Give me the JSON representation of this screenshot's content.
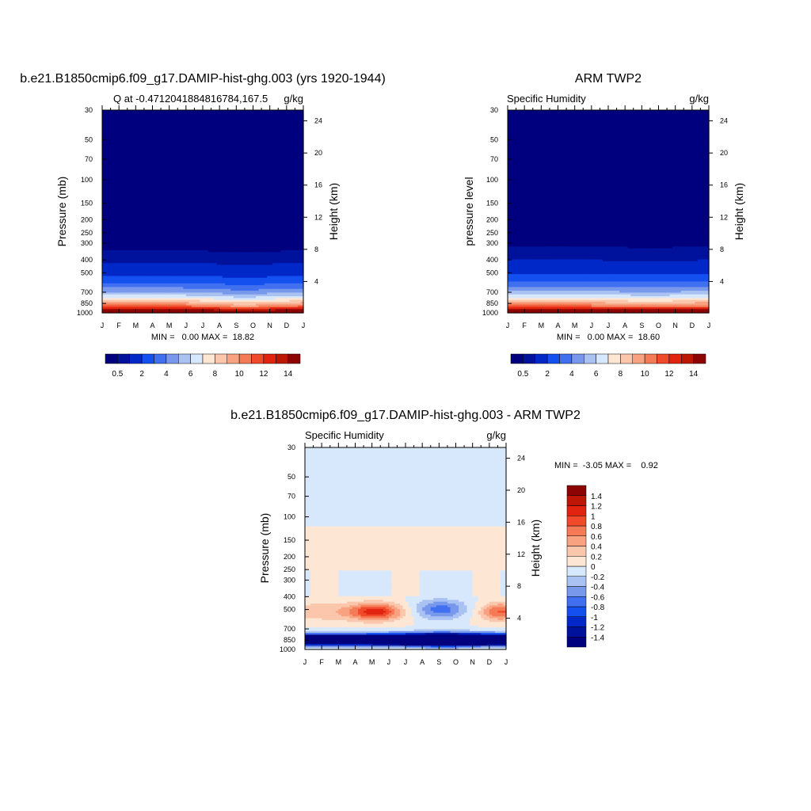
{
  "colorbar": {
    "sequential_colors": [
      "#00007f",
      "#00129b",
      "#0028c8",
      "#1450f0",
      "#4070f0",
      "#7898ec",
      "#aac2f2",
      "#d8e8fc",
      "#fee6d4",
      "#fbc7ac",
      "#f8a282",
      "#f57a56",
      "#f04a2a",
      "#e02410",
      "#bc1604",
      "#8c0404"
    ],
    "sequential_labels": [
      "0.5",
      "2",
      "4",
      "6",
      "8",
      "10",
      "12",
      "14"
    ],
    "diff_colors": [
      "#00007f",
      "#00129b",
      "#0028c8",
      "#1450f0",
      "#4070f0",
      "#7898ec",
      "#aac2f2",
      "#d8e8fc",
      "#fee6d4",
      "#fbc7ac",
      "#f8a282",
      "#f57a56",
      "#f04a2a",
      "#e02410",
      "#bc1604",
      "#8c0404"
    ],
    "diff_labels": [
      "-1.4",
      "-1.2",
      "-1",
      "-0.8",
      "-0.6",
      "-0.4",
      "-0.2",
      "0",
      "0.2",
      "0.4",
      "0.6",
      "0.8",
      "1",
      "1.2",
      "1.4"
    ]
  },
  "chart_data": [
    {
      "type": "heatmap",
      "title": "b.e21.B1850cmip6.f09_g17.DAMIP-hist-ghg.003 (yrs 1920-1944)",
      "left_string": "Q at -0.4712041884816784,167.5",
      "right_string": "g/kg",
      "ylabel": "Pressure (mb)",
      "y2label": "Height (km)",
      "x_ticks": [
        "J",
        "F",
        "M",
        "A",
        "M",
        "J",
        "J",
        "A",
        "S",
        "O",
        "N",
        "D",
        "J"
      ],
      "y_ticks": [
        30,
        50,
        70,
        100,
        150,
        200,
        250,
        300,
        400,
        500,
        700,
        850,
        1000
      ],
      "y2_ticks": [
        4,
        8,
        12,
        16,
        20,
        24
      ],
      "ylim": [
        1000,
        30
      ],
      "scale": "log",
      "stats": "MIN =   0.00 MAX =  18.82",
      "field": "model",
      "min": 0.0,
      "max": 18.82
    },
    {
      "type": "heatmap",
      "title": "ARM TWP2",
      "left_string": "Specific Humidity",
      "right_string": "g/kg",
      "ylabel": "pressure level",
      "y2label": "Height (km)",
      "x_ticks": [
        "J",
        "F",
        "M",
        "A",
        "M",
        "J",
        "J",
        "A",
        "S",
        "O",
        "N",
        "D",
        "J"
      ],
      "y_ticks": [
        30,
        50,
        70,
        100,
        150,
        200,
        250,
        300,
        400,
        500,
        700,
        850,
        1000
      ],
      "y2_ticks": [
        4,
        8,
        12,
        16,
        20,
        24
      ],
      "ylim": [
        1000,
        30
      ],
      "scale": "log",
      "stats": "MIN =   0.00 MAX =  18.60",
      "field": "obs",
      "min": 0.0,
      "max": 18.6
    },
    {
      "type": "heatmap",
      "title": "b.e21.B1850cmip6.f09_g17.DAMIP-hist-ghg.003 - ARM TWP2",
      "left_string": "Specific Humidity",
      "right_string": "g/kg",
      "ylabel": "Pressure (mb)",
      "y2label": "Height (km)",
      "x_ticks": [
        "J",
        "F",
        "M",
        "A",
        "M",
        "J",
        "J",
        "A",
        "S",
        "O",
        "N",
        "D",
        "J"
      ],
      "y_ticks": [
        30,
        50,
        70,
        100,
        150,
        200,
        250,
        300,
        400,
        500,
        700,
        850,
        1000
      ],
      "y2_ticks": [
        4,
        8,
        12,
        16,
        20,
        24
      ],
      "ylim": [
        1000,
        30
      ],
      "scale": "log",
      "stats": "MIN =  -3.05 MAX =    0.92",
      "field": "diff",
      "min": -3.05,
      "max": 0.92
    }
  ]
}
